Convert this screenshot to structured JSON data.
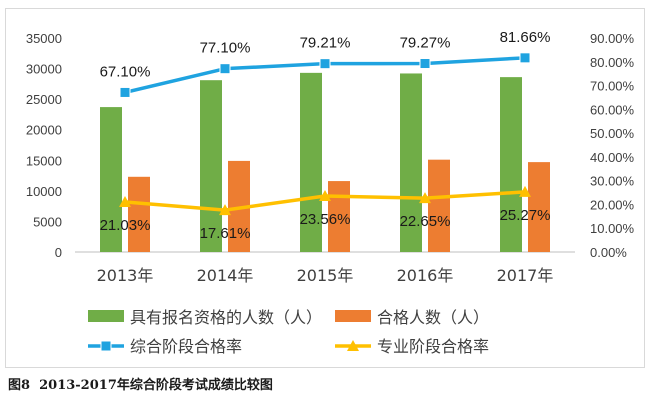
{
  "chart_data": {
    "type": "bar",
    "categories": [
      "2013年",
      "2014年",
      "2015年",
      "2016年",
      "2017年"
    ],
    "series": [
      {
        "name": "具有报名资格的人数（人）",
        "kind": "bar",
        "axis": "left",
        "color": "#70ad47",
        "values": [
          23700,
          28100,
          29300,
          29200,
          28600
        ]
      },
      {
        "name": "合格人数（人）",
        "kind": "bar",
        "axis": "left",
        "color": "#ed7d31",
        "values": [
          12300,
          14900,
          11600,
          15100,
          14700
        ]
      },
      {
        "name": "综合阶段合格率",
        "kind": "line",
        "axis": "right",
        "color": "#1fa3e0",
        "marker": "square",
        "values": [
          67.1,
          77.1,
          79.21,
          79.27,
          81.66
        ],
        "labels": [
          "67.10%",
          "77.10%",
          "79.21%",
          "79.27%",
          "81.66%"
        ]
      },
      {
        "name": "专业阶段合格率",
        "kind": "line",
        "axis": "right",
        "color": "#ffc000",
        "marker": "triangle",
        "values": [
          21.03,
          17.61,
          23.56,
          22.65,
          25.27
        ],
        "labels": [
          "21.03%",
          "17.61%",
          "23.56%",
          "22.65%",
          "25.27%"
        ]
      }
    ],
    "left_axis": {
      "ylim": [
        0,
        35000
      ],
      "ticks": [
        "0",
        "5000",
        "10000",
        "15000",
        "20000",
        "25000",
        "30000",
        "35000"
      ]
    },
    "right_axis": {
      "ylim": [
        0,
        90
      ],
      "ticks": [
        "0.00%",
        "10.00%",
        "20.00%",
        "30.00%",
        "40.00%",
        "50.00%",
        "60.00%",
        "70.00%",
        "80.00%",
        "90.00%"
      ]
    },
    "grid": false,
    "legend_position": "bottom"
  },
  "caption": {
    "label": "图8",
    "text": "2013-2017年综合阶段考试成绩比较图"
  }
}
